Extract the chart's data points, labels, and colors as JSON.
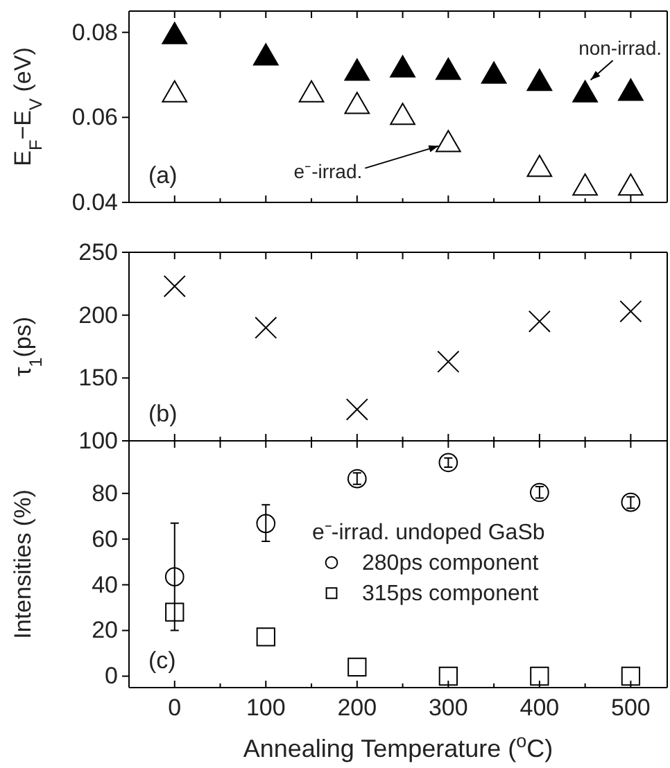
{
  "chart_data": [
    {
      "type": "scatter",
      "ylabel": "E$_{F}$−E$_{V}$ (eV)",
      "xlim": [
        -50,
        540
      ],
      "ylim": [
        0.04,
        0.085
      ],
      "xticks": [
        0,
        {
          "value": 50,
          "label": null
        },
        100,
        {
          "value": 150,
          "label": null
        },
        200,
        {
          "value": 250,
          "label": null
        },
        300,
        {
          "value": 350,
          "label": null
        },
        400,
        {
          "value": 450,
          "label": null
        },
        500
      ],
      "yticks": [
        0.04,
        0.06,
        0.08
      ],
      "tick_labels": "y",
      "marker": "triangle",
      "legend": false,
      "annotations": [
        "(a)",
        {
          "text": "non-irrad.",
          "x": 450,
          "y": 0.0675
        },
        {
          "text": "e⁻-irrad.",
          "x": 300,
          "y": 0.0536
        }
      ],
      "series": [
        {
          "color": "#000000",
          "x": [
            0,
            100,
            200,
            250,
            300,
            350,
            400,
            450,
            500
          ],
          "values": [
            0.079,
            0.074,
            0.0704,
            0.0712,
            0.0706,
            0.0697,
            0.068,
            0.0653,
            0.0657
          ]
        },
        {
          "color": "#000000",
          "marker": "triangle",
          "x": [
            0,
            150,
            200,
            250,
            300,
            400,
            450,
            500
          ],
          "values": [
            0.0653,
            0.0653,
            0.0626,
            0.06,
            0.0536,
            0.0478,
            0.0434,
            0.0434
          ]
        }
      ]
    },
    {
      "type": "scatter",
      "ylabel": "τ$_{1}$(ps)",
      "xlim": [
        -50,
        540
      ],
      "ylim": [
        100,
        250
      ],
      "xticks": [
        0,
        {
          "value": 50,
          "label": null
        },
        100,
        {
          "value": 150,
          "label": null
        },
        200,
        {
          "value": 250,
          "label": null
        },
        300,
        {
          "value": 350,
          "label": null
        },
        400,
        {
          "value": 450,
          "label": null
        },
        500
      ],
      "yticks": [
        100,
        150,
        200,
        250
      ],
      "tick_labels": "y",
      "marker": "cross",
      "legend": false,
      "annotations": [
        "(b)"
      ],
      "series": [
        {
          "color": "#000000",
          "x": [
            0,
            100,
            200,
            300,
            400,
            500
          ],
          "values": [
            223,
            190,
            125,
            163,
            195,
            203
          ]
        }
      ]
    },
    {
      "type": "scatter",
      "xlabel": "Annealing Temperature ($^{o}$C)",
      "ylabel": "Intensities (%)",
      "xlim": [
        -50,
        540
      ],
      "ylim": [
        -5,
        103
      ],
      "xticks": [
        0,
        {
          "value": 50,
          "label": null
        },
        100,
        {
          "value": 150,
          "label": null
        },
        200,
        {
          "value": 250,
          "label": null
        },
        300,
        {
          "value": 350,
          "label": null
        },
        400,
        {
          "value": 450,
          "label": null
        },
        500
      ],
      "yticks": [
        0,
        20,
        40,
        60,
        80
      ],
      "legend": "right",
      "legend_title": "e⁻-irrad. undoped GaSb",
      "annotations": [
        "(c)"
      ],
      "series": [
        {
          "name": "280ps component",
          "marker": "circle",
          "color": "#000000",
          "x": [
            0,
            100,
            200,
            300,
            400,
            500
          ],
          "values": [
            43.5,
            66.8,
            86.4,
            93.5,
            80.4,
            76.1
          ],
          "errors": [
            [
              20,
              67
            ],
            [
              59,
              75
            ],
            [
              84,
              89
            ],
            [
              91.5,
              95.5
            ],
            [
              78,
              83
            ],
            [
              73.5,
              78.5
            ]
          ]
        },
        {
          "name": "315ps component",
          "marker": "square",
          "color": "#000000",
          "x": [
            0,
            100,
            200,
            300,
            400,
            500
          ],
          "values": [
            28,
            17.2,
            4,
            0,
            0,
            0
          ]
        }
      ]
    }
  ]
}
